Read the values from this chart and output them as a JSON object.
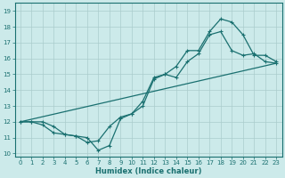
{
  "xlabel": "Humidex (Indice chaleur)",
  "bg_color": "#cceaea",
  "grid_color": "#aacccc",
  "line_color": "#1a7070",
  "xlim": [
    -0.5,
    23.5
  ],
  "ylim": [
    9.8,
    19.5
  ],
  "xticks": [
    0,
    1,
    2,
    3,
    4,
    5,
    6,
    7,
    8,
    9,
    10,
    11,
    12,
    13,
    14,
    15,
    16,
    17,
    18,
    19,
    20,
    21,
    22,
    23
  ],
  "yticks": [
    10,
    11,
    12,
    13,
    14,
    15,
    16,
    17,
    18,
    19
  ],
  "line1_x": [
    0,
    1,
    2,
    3,
    4,
    5,
    6,
    7,
    8,
    9,
    10,
    11,
    12,
    13,
    14,
    15,
    16,
    17,
    18,
    19,
    20,
    21,
    22,
    23
  ],
  "line1_y": [
    12.0,
    12.0,
    11.8,
    11.3,
    11.2,
    11.1,
    10.7,
    10.8,
    11.7,
    12.3,
    12.5,
    13.3,
    14.8,
    15.0,
    15.5,
    16.5,
    16.5,
    17.7,
    18.5,
    18.3,
    17.5,
    16.2,
    16.2,
    15.8
  ],
  "line2_x": [
    0,
    1,
    2,
    3,
    4,
    5,
    6,
    7,
    8,
    9,
    10,
    11,
    12,
    13,
    14,
    15,
    16,
    17,
    18,
    19,
    20,
    21,
    22,
    23
  ],
  "line2_y": [
    12.0,
    12.0,
    12.0,
    11.7,
    11.2,
    11.1,
    11.0,
    10.2,
    10.5,
    12.2,
    12.5,
    13.0,
    14.7,
    15.0,
    14.8,
    15.8,
    16.3,
    17.5,
    17.7,
    16.5,
    16.2,
    16.3,
    15.8,
    15.7
  ],
  "line3_x": [
    0,
    23
  ],
  "line3_y": [
    12.0,
    15.7
  ],
  "marker_size": 2.5,
  "linewidth": 0.9
}
